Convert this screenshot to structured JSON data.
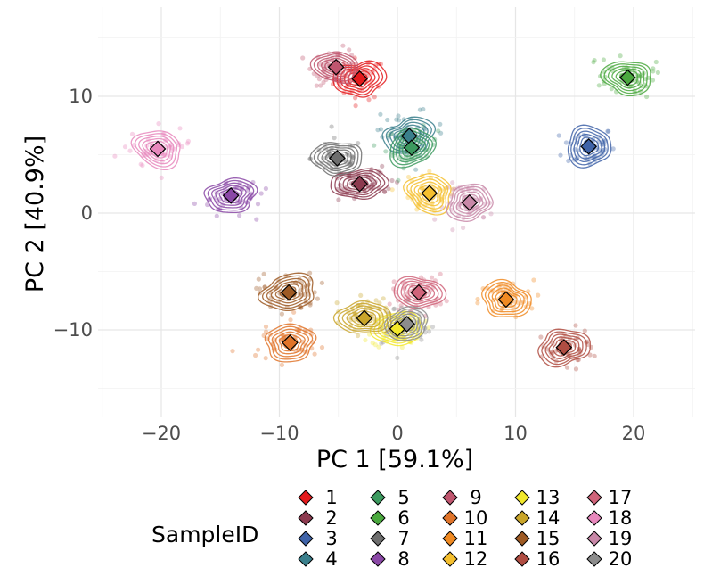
{
  "chart_data": {
    "type": "scatter",
    "xlabel": "PC 1 [59.1%]",
    "ylabel": "PC 2 [40.9%]",
    "xlim": [
      -25,
      25
    ],
    "ylim": [
      -17,
      15
    ],
    "x_ticks": [
      -20,
      -10,
      0,
      10,
      20
    ],
    "x_tick_labels": [
      "−20",
      "−10",
      "0",
      "10",
      "20"
    ],
    "y_ticks": [
      -10,
      0,
      10
    ],
    "y_tick_labels": [
      "−10",
      "0",
      "10"
    ],
    "grid": true,
    "theme": "minimal",
    "legend": {
      "title": "SampleID",
      "position": "bottom",
      "columns": 5
    },
    "series": [
      {
        "name": "1",
        "color": "#e41a1c",
        "centroid": [
          -3.2,
          11.5
        ],
        "spread": [
          2.0,
          1.6
        ]
      },
      {
        "name": "2",
        "color": "#8c3a4f",
        "centroid": [
          -3.2,
          2.5
        ],
        "spread": [
          2.3,
          1.3
        ]
      },
      {
        "name": "3",
        "color": "#3f63a8",
        "centroid": [
          16.2,
          5.7
        ],
        "spread": [
          2.0,
          1.6
        ]
      },
      {
        "name": "4",
        "color": "#3a7f8c",
        "centroid": [
          1.0,
          6.6
        ],
        "spread": [
          2.1,
          1.5
        ]
      },
      {
        "name": "5",
        "color": "#3c9a5f",
        "centroid": [
          1.2,
          5.6
        ],
        "spread": [
          2.0,
          1.5
        ]
      },
      {
        "name": "6",
        "color": "#4aa83e",
        "centroid": [
          19.5,
          11.6
        ],
        "spread": [
          2.0,
          1.5
        ]
      },
      {
        "name": "7",
        "color": "#6e6e6e",
        "centroid": [
          -5.1,
          4.7
        ],
        "spread": [
          2.0,
          1.5
        ]
      },
      {
        "name": "8",
        "color": "#8a48a6",
        "centroid": [
          -14.1,
          1.5
        ],
        "spread": [
          2.2,
          1.4
        ]
      },
      {
        "name": "9",
        "color": "#c0566f",
        "centroid": [
          -5.2,
          12.5
        ],
        "spread": [
          1.8,
          1.4
        ]
      },
      {
        "name": "10",
        "color": "#e0742a",
        "centroid": [
          -9.1,
          -11.1
        ],
        "spread": [
          2.2,
          1.5
        ]
      },
      {
        "name": "11",
        "color": "#f08a22",
        "centroid": [
          9.2,
          -7.4
        ],
        "spread": [
          2.1,
          1.5
        ]
      },
      {
        "name": "12",
        "color": "#f5bf2e",
        "centroid": [
          2.7,
          1.7
        ],
        "spread": [
          2.0,
          1.6
        ]
      },
      {
        "name": "13",
        "color": "#f2e82a",
        "centroid": [
          0.0,
          -9.9
        ],
        "spread": [
          2.0,
          1.5
        ]
      },
      {
        "name": "14",
        "color": "#c9a52a",
        "centroid": [
          -2.8,
          -9.0
        ],
        "spread": [
          2.2,
          1.5
        ]
      },
      {
        "name": "15",
        "color": "#9e5a24",
        "centroid": [
          -9.2,
          -6.8
        ],
        "spread": [
          2.3,
          1.5
        ]
      },
      {
        "name": "16",
        "color": "#b04d42",
        "centroid": [
          14.1,
          -11.5
        ],
        "spread": [
          2.2,
          1.5
        ]
      },
      {
        "name": "17",
        "color": "#d0647a",
        "centroid": [
          1.8,
          -6.8
        ],
        "spread": [
          2.0,
          1.4
        ]
      },
      {
        "name": "18",
        "color": "#e888bd",
        "centroid": [
          -20.3,
          5.5
        ],
        "spread": [
          2.1,
          1.5
        ]
      },
      {
        "name": "19",
        "color": "#c888a8",
        "centroid": [
          6.1,
          0.9
        ],
        "spread": [
          1.9,
          1.5
        ]
      },
      {
        "name": "20",
        "color": "#8c8c8c",
        "centroid": [
          0.8,
          -9.5
        ],
        "spread": [
          1.8,
          1.4
        ]
      }
    ]
  }
}
